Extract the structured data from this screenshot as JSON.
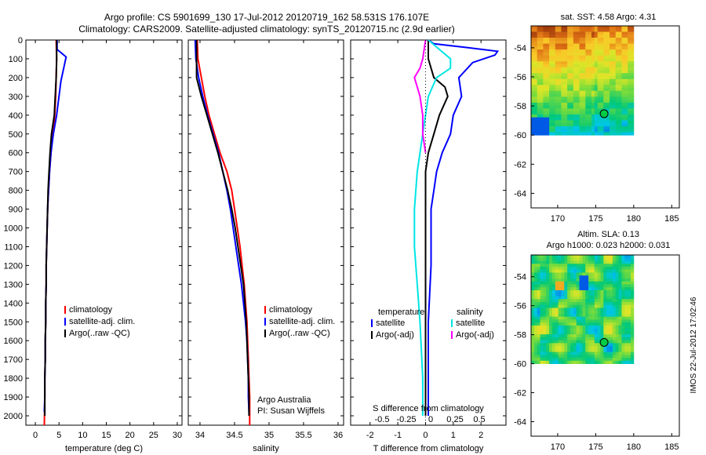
{
  "header": {
    "line1": "Argo profile: CS 5901699_130 17-Jul-2012 20120719_162 58.531S 176.107E",
    "line2": "Climatology: CARS2009. Satellite-adjusted climatology: synTS_20120715.nc (2.9d earlier)"
  },
  "side_label": "IMOS 22-Jul-2012 17:02:46",
  "colors": {
    "climatology": "#ff0000",
    "satellite": "#0000ff",
    "argo": "#000000",
    "cyan": "#00e5e5",
    "magenta": "#ff00ff"
  },
  "depth_ticks": [
    "0",
    "100",
    "200",
    "300",
    "400",
    "500",
    "600",
    "700",
    "800",
    "900",
    "1000",
    "1100",
    "1200",
    "1300",
    "1400",
    "1500",
    "1600",
    "1700",
    "1800",
    "1900",
    "2000"
  ],
  "chart_data": [
    {
      "type": "line",
      "id": "temperature",
      "xlabel": "temperature (deg C)",
      "xlim": [
        -2,
        31
      ],
      "ylim": [
        0,
        2050
      ],
      "xticks": [
        "0",
        "5",
        "10",
        "15",
        "20",
        "25",
        "30"
      ],
      "legend": [
        "climatology",
        "satellite-adj. clim.",
        "Argo(..raw -QC)"
      ],
      "series": [
        {
          "name": "climatology",
          "color": "red",
          "points": [
            [
              4.4,
              0
            ],
            [
              4.5,
              100
            ],
            [
              4.4,
              200
            ],
            [
              4.3,
              300
            ],
            [
              4.1,
              400
            ],
            [
              3.7,
              500
            ],
            [
              3.3,
              600
            ],
            [
              3.0,
              700
            ],
            [
              2.8,
              800
            ],
            [
              2.6,
              900
            ],
            [
              2.5,
              1000
            ],
            [
              2.4,
              1100
            ],
            [
              2.3,
              1200
            ],
            [
              2.3,
              1300
            ],
            [
              2.2,
              1400
            ],
            [
              2.2,
              1500
            ],
            [
              2.1,
              1600
            ],
            [
              2.1,
              1700
            ],
            [
              2.0,
              1800
            ],
            [
              2.0,
              1900
            ],
            [
              1.9,
              2050
            ]
          ]
        },
        {
          "name": "satellite-adj. clim.",
          "color": "blue",
          "points": [
            [
              4.6,
              0
            ],
            [
              4.6,
              50
            ],
            [
              6.5,
              90
            ],
            [
              6.0,
              150
            ],
            [
              5.4,
              220
            ],
            [
              5.0,
              300
            ],
            [
              4.5,
              400
            ],
            [
              3.8,
              500
            ],
            [
              3.3,
              600
            ],
            [
              3.0,
              700
            ],
            [
              2.8,
              800
            ],
            [
              2.6,
              900
            ],
            [
              2.5,
              1000
            ],
            [
              2.4,
              1100
            ],
            [
              2.3,
              1200
            ],
            [
              2.3,
              1300
            ],
            [
              2.2,
              1400
            ],
            [
              2.2,
              1500
            ],
            [
              2.1,
              1600
            ],
            [
              2.1,
              1700
            ],
            [
              2.0,
              1800
            ],
            [
              2.0,
              1900
            ],
            [
              1.9,
              1980
            ]
          ]
        },
        {
          "name": "Argo(..raw -QC)",
          "color": "black",
          "points": [
            [
              4.5,
              0
            ],
            [
              4.5,
              100
            ],
            [
              4.4,
              200
            ],
            [
              4.2,
              300
            ],
            [
              4.0,
              400
            ],
            [
              3.4,
              500
            ],
            [
              3.1,
              600
            ],
            [
              2.9,
              700
            ],
            [
              2.7,
              800
            ],
            [
              2.6,
              900
            ],
            [
              2.5,
              1000
            ],
            [
              2.4,
              1100
            ],
            [
              2.3,
              1200
            ],
            [
              2.3,
              1300
            ],
            [
              2.2,
              1400
            ],
            [
              2.2,
              1500
            ],
            [
              2.1,
              1600
            ],
            [
              2.1,
              1700
            ],
            [
              2.0,
              1800
            ],
            [
              2.0,
              1900
            ],
            [
              2.0,
              2000
            ]
          ]
        }
      ]
    },
    {
      "type": "line",
      "id": "salinity",
      "xlabel": "salinity",
      "xlim": [
        33.83,
        36.08
      ],
      "ylim": [
        0,
        2050
      ],
      "xticks": [
        "34",
        "34.5",
        "35",
        "35.5",
        "36"
      ],
      "legend": [
        "climatology",
        "satellite-adj. clim.",
        "Argo(..raw -QC)"
      ],
      "annotation": [
        "Argo Australia",
        "PI: Susan Wijffels"
      ],
      "series": [
        {
          "name": "climatology",
          "color": "red",
          "points": [
            [
              33.96,
              0
            ],
            [
              33.97,
              100
            ],
            [
              34.02,
              200
            ],
            [
              34.07,
              300
            ],
            [
              34.13,
              400
            ],
            [
              34.21,
              500
            ],
            [
              34.29,
              600
            ],
            [
              34.39,
              700
            ],
            [
              34.46,
              800
            ],
            [
              34.5,
              900
            ],
            [
              34.54,
              1000
            ],
            [
              34.58,
              1100
            ],
            [
              34.61,
              1200
            ],
            [
              34.64,
              1300
            ],
            [
              34.66,
              1400
            ],
            [
              34.68,
              1500
            ],
            [
              34.69,
              1600
            ],
            [
              34.7,
              1700
            ],
            [
              34.71,
              1800
            ],
            [
              34.72,
              1900
            ],
            [
              34.72,
              2050
            ]
          ]
        },
        {
          "name": "satellite-adj. clim.",
          "color": "blue",
          "points": [
            [
              33.93,
              0
            ],
            [
              33.94,
              100
            ],
            [
              33.98,
              200
            ],
            [
              34.04,
              300
            ],
            [
              34.11,
              400
            ],
            [
              34.19,
              500
            ],
            [
              34.27,
              600
            ],
            [
              34.33,
              700
            ],
            [
              34.39,
              800
            ],
            [
              34.44,
              900
            ],
            [
              34.48,
              1000
            ],
            [
              34.52,
              1100
            ],
            [
              34.56,
              1200
            ],
            [
              34.6,
              1300
            ],
            [
              34.63,
              1400
            ],
            [
              34.66,
              1500
            ],
            [
              34.68,
              1600
            ],
            [
              34.69,
              1700
            ],
            [
              34.7,
              1800
            ],
            [
              34.7,
              1900
            ],
            [
              34.71,
              1980
            ]
          ]
        },
        {
          "name": "Argo(..raw -QC)",
          "color": "black",
          "points": [
            [
              33.95,
              0
            ],
            [
              33.95,
              100
            ],
            [
              33.95,
              200
            ],
            [
              34.02,
              300
            ],
            [
              34.1,
              400
            ],
            [
              34.18,
              500
            ],
            [
              34.26,
              600
            ],
            [
              34.33,
              700
            ],
            [
              34.4,
              800
            ],
            [
              34.46,
              900
            ],
            [
              34.51,
              1000
            ],
            [
              34.55,
              1100
            ],
            [
              34.59,
              1200
            ],
            [
              34.63,
              1300
            ],
            [
              34.65,
              1400
            ],
            [
              34.67,
              1500
            ],
            [
              34.68,
              1600
            ],
            [
              34.69,
              1700
            ],
            [
              34.7,
              1800
            ],
            [
              34.71,
              1900
            ],
            [
              34.71,
              2000
            ]
          ]
        }
      ]
    },
    {
      "type": "line",
      "id": "difference",
      "xlabel": "T difference from climatology",
      "xlabel_top": "S difference from climatology",
      "xlim": [
        -2.7,
        2.9
      ],
      "ylim": [
        0,
        2050
      ],
      "xticks": [
        "-2",
        "-1",
        "0",
        "1",
        "2"
      ],
      "xticks_top": [
        "-0.5",
        "-0.25",
        "0",
        "0.25",
        "0.5"
      ],
      "legend_left_title": "temperature",
      "legend_left": [
        "satellite",
        "Argo(-adj)"
      ],
      "legend_right_title": "salinity",
      "legend_right": [
        "satellite",
        "Argo(-adj)"
      ],
      "series": [
        {
          "name": "temperature satellite",
          "color": "blue",
          "points": [
            [
              0.1,
              0
            ],
            [
              0.3,
              20
            ],
            [
              1.5,
              40
            ],
            [
              2.6,
              60
            ],
            [
              2.5,
              80
            ],
            [
              1.7,
              120
            ],
            [
              1.2,
              200
            ],
            [
              1.3,
              300
            ],
            [
              1.0,
              400
            ],
            [
              0.9,
              500
            ],
            [
              0.6,
              600
            ],
            [
              0.4,
              700
            ],
            [
              0.3,
              800
            ],
            [
              0.2,
              900
            ],
            [
              0.2,
              1000
            ],
            [
              0.2,
              1200
            ],
            [
              0.1,
              1500
            ],
            [
              0.1,
              1800
            ],
            [
              0.1,
              2000
            ]
          ]
        },
        {
          "name": "temperature Argo(-adj)",
          "color": "black",
          "points": [
            [
              0.1,
              0
            ],
            [
              0.1,
              100
            ],
            [
              0.3,
              200
            ],
            [
              0.7,
              250
            ],
            [
              0.8,
              300
            ],
            [
              0.5,
              400
            ],
            [
              0.3,
              500
            ],
            [
              0.1,
              600
            ],
            [
              0.0,
              700
            ],
            [
              0.0,
              1000
            ],
            [
              0.0,
              1500
            ],
            [
              0.0,
              2000
            ]
          ]
        },
        {
          "name": "salinity satellite",
          "color": "cyan",
          "points": [
            [
              0.1,
              0
            ],
            [
              0.5,
              50
            ],
            [
              0.9,
              100
            ],
            [
              0.9,
              150
            ],
            [
              0.4,
              200
            ],
            [
              0.1,
              300
            ],
            [
              -0.1,
              500
            ],
            [
              -0.3,
              700
            ],
            [
              -0.4,
              900
            ],
            [
              -0.4,
              1100
            ],
            [
              -0.3,
              1300
            ],
            [
              -0.2,
              1500
            ],
            [
              -0.1,
              1800
            ],
            [
              -0.1,
              2000
            ]
          ]
        },
        {
          "name": "salinity Argo(-adj)",
          "color": "magenta",
          "points": [
            [
              0.0,
              0
            ],
            [
              -0.1,
              100
            ],
            [
              -0.2,
              150
            ],
            [
              -0.4,
              200
            ],
            [
              -0.3,
              250
            ],
            [
              -0.2,
              300
            ],
            [
              -0.1,
              400
            ],
            [
              -0.1,
              500
            ],
            [
              0.0,
              600
            ]
          ]
        }
      ]
    },
    {
      "type": "heatmap",
      "id": "sst_map",
      "title": "sat. SST: 4.58 Argo: 4.31",
      "xlim": [
        166.5,
        186
      ],
      "ylim": [
        -65,
        -52.5
      ],
      "xticks": [
        "170",
        "175",
        "180",
        "185"
      ],
      "yticks": [
        "-54",
        "-56",
        "-58",
        "-60",
        "-62",
        "-64"
      ],
      "marker": [
        176.107,
        -58.531
      ]
    },
    {
      "type": "heatmap",
      "id": "sla_map",
      "title_lines": [
        "Altim. SLA: 0.13",
        "Argo h1000: 0.023 h2000: 0.031"
      ],
      "xlim": [
        166.5,
        186
      ],
      "ylim": [
        -65,
        -52.5
      ],
      "xticks": [
        "170",
        "175",
        "180",
        "185"
      ],
      "yticks": [
        "-54",
        "-56",
        "-58",
        "-60",
        "-62",
        "-64"
      ],
      "marker": [
        176.107,
        -58.531
      ]
    }
  ]
}
